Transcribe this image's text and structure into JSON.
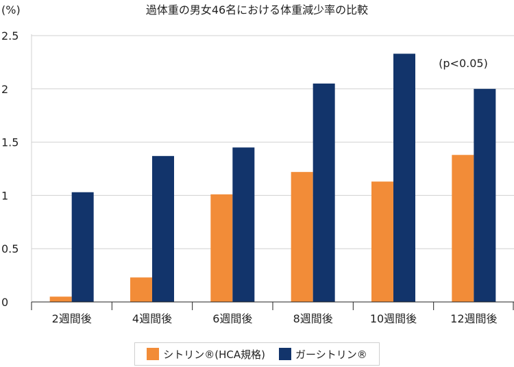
{
  "chart_data": {
    "type": "bar",
    "title": "過体重の男女46名における体重減少率の比較",
    "ylabel": "(%)",
    "annotation": "(p<0.05)",
    "ylim": [
      0,
      2.5
    ],
    "yticks": [
      "0",
      "0.5",
      "1",
      "1.5",
      "2",
      "2.5"
    ],
    "categories": [
      "2週間後",
      "4週間後",
      "6週間後",
      "8週間後",
      "10週間後",
      "12週間後"
    ],
    "series": [
      {
        "name": "シトリン®(HCA規格)",
        "color": "#F28C38",
        "values": [
          0.05,
          0.23,
          1.01,
          1.22,
          1.13,
          1.38
        ]
      },
      {
        "name": "ガーシトリン®",
        "color": "#12346B",
        "values": [
          1.03,
          1.37,
          1.45,
          2.05,
          2.33,
          2.0
        ]
      }
    ],
    "grid": true,
    "legend": "bottom"
  }
}
